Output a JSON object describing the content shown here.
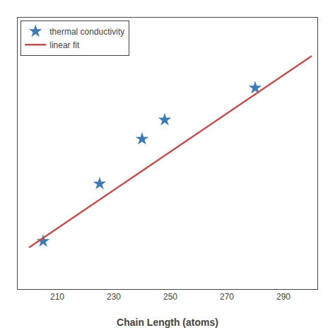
{
  "chart_data": {
    "type": "scatter",
    "xlabel": "Chain Length (atoms)",
    "series": [
      {
        "name": "thermal conductivity",
        "type": "scatter",
        "marker": "star",
        "color": "#3E7AB5",
        "x": [
          205,
          225,
          240,
          248,
          280
        ],
        "values": [
          0.4,
          0.58,
          0.72,
          0.78,
          0.88
        ]
      },
      {
        "name": "linear fit",
        "type": "line",
        "color": "#C0504D",
        "x": [
          200,
          300
        ],
        "values": [
          0.38,
          0.98
        ]
      }
    ],
    "xlim": [
      196,
      302
    ],
    "xticks": [
      210,
      230,
      250,
      270,
      290
    ],
    "ylim": [
      0.25,
      1.1
    ],
    "yticks": [],
    "tick_labels": "x",
    "grid": false,
    "legend": "upper left"
  }
}
